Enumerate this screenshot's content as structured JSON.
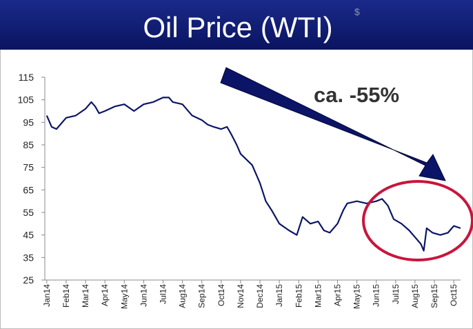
{
  "chart_data": {
    "type": "line",
    "title": "Oil Price (WTI)",
    "superscript": "$",
    "annotation": "ca. -55%",
    "x": [
      0,
      0.25,
      0.5,
      1,
      1.5,
      2,
      2.3,
      2.5,
      2.7,
      3,
      3.5,
      4,
      4.5,
      5,
      5.5,
      6,
      6.3,
      6.5,
      7,
      7.5,
      8,
      8.3,
      8.6,
      9,
      9.3,
      9.5,
      9.8,
      10,
      10.6,
      11,
      11.3,
      11.6,
      12,
      12.5,
      12.9,
      13.2,
      13.6,
      14,
      14.3,
      14.6,
      15,
      15.3,
      15.5,
      16,
      16.5,
      17,
      17.3,
      17.6,
      17.9,
      18.3,
      18.7,
      19,
      19.3,
      19.45,
      19.6,
      19.9,
      20.3,
      20.7,
      21,
      21.35
    ],
    "series": [
      {
        "color": "#0b1466",
        "values": [
          98,
          93,
          92,
          97,
          98,
          101,
          104,
          102,
          99,
          100,
          102,
          103,
          100,
          103,
          104,
          106,
          106,
          104,
          103,
          98,
          96,
          94,
          93,
          92,
          93,
          90,
          85,
          81,
          76,
          68,
          60,
          56,
          50,
          47,
          45,
          53,
          50,
          51,
          47,
          46,
          50,
          56,
          59,
          60,
          59,
          60,
          61,
          58,
          52,
          50,
          47,
          44,
          41,
          38,
          48,
          46,
          45,
          46,
          49,
          48
        ]
      }
    ],
    "xlim": [
      -0.1,
      21.35
    ],
    "xticks": [
      {
        "value": 0,
        "label": "Jan14"
      },
      {
        "value": 1,
        "label": "Feb14"
      },
      {
        "value": 2,
        "label": "Mar14"
      },
      {
        "value": 3,
        "label": "Apr14"
      },
      {
        "value": 4,
        "label": "May14"
      },
      {
        "value": 5,
        "label": "Jun14"
      },
      {
        "value": 6,
        "label": "Jul14"
      },
      {
        "value": 7,
        "label": "Aug14"
      },
      {
        "value": 8,
        "label": "Sep14"
      },
      {
        "value": 9,
        "label": "Oct14"
      },
      {
        "value": 10,
        "label": "Nov14"
      },
      {
        "value": 11,
        "label": "Dec14"
      },
      {
        "value": 12,
        "label": "Jan15"
      },
      {
        "value": 13,
        "label": "Feb15"
      },
      {
        "value": 14,
        "label": "Mar15"
      },
      {
        "value": 15,
        "label": "Apr15"
      },
      {
        "value": 16,
        "label": "May15"
      },
      {
        "value": 17,
        "label": "Jun15"
      },
      {
        "value": 18,
        "label": "Jul15"
      },
      {
        "value": 19,
        "label": "Aug15"
      },
      {
        "value": 20,
        "label": "Sep15"
      },
      {
        "value": 21,
        "label": "Oct15"
      }
    ],
    "ylim": [
      25,
      115
    ],
    "yticks": [
      25,
      35,
      45,
      55,
      65,
      75,
      85,
      95,
      105,
      115
    ],
    "grid": false
  }
}
